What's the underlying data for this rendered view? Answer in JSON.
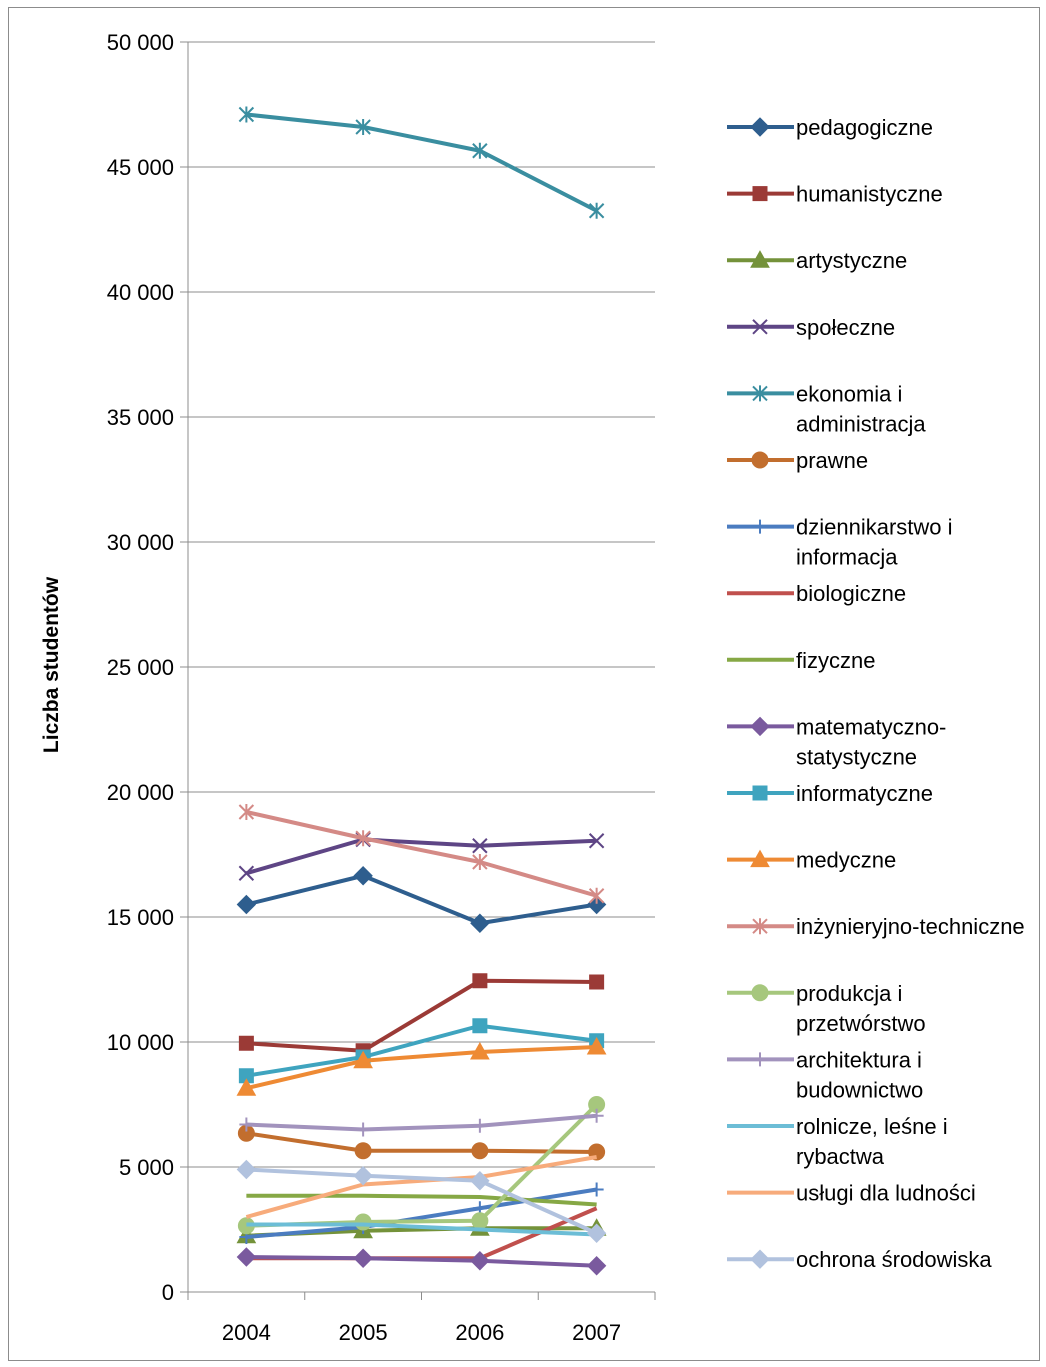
{
  "chart_data": {
    "type": "line",
    "title": "",
    "xlabel": "",
    "ylabel": "Liczba studentów",
    "ylim": [
      0,
      50000
    ],
    "y_ticks": [
      "0",
      "5 000",
      "10 000",
      "15 000",
      "20 000",
      "25 000",
      "30 000",
      "35 000",
      "40 000",
      "45 000",
      "50 000"
    ],
    "x": [
      "2004",
      "2005",
      "2006",
      "2007"
    ],
    "grid": "horizontal",
    "legend_position": "right",
    "series": [
      {
        "name": "pedagogiczne",
        "color": "#2e5e8e",
        "marker": "diamond",
        "values": [
          15500,
          16650,
          14750,
          15500
        ]
      },
      {
        "name": "humanistyczne",
        "color": "#9b3a36",
        "marker": "square",
        "values": [
          9950,
          9650,
          12450,
          12400
        ]
      },
      {
        "name": "artystyczne",
        "color": "#74923a",
        "marker": "triangle",
        "values": [
          2250,
          2450,
          2550,
          2550
        ]
      },
      {
        "name": "społeczne",
        "color": "#5e4585",
        "marker": "x",
        "values": [
          16750,
          18100,
          17850,
          18050
        ]
      },
      {
        "name": "ekonomia i administracja",
        "color": "#3a8ea0",
        "marker": "star",
        "values": [
          47100,
          46600,
          45650,
          43250
        ]
      },
      {
        "name": "prawne",
        "color": "#c26e2e",
        "marker": "circle",
        "values": [
          6350,
          5650,
          5650,
          5600
        ]
      },
      {
        "name": "dziennikarstwo i informacja",
        "color": "#4b7cc0",
        "marker": "plus",
        "values": [
          2200,
          2600,
          3350,
          4100
        ]
      },
      {
        "name": "biologiczne",
        "color": "#c0504d",
        "marker": "none",
        "values": [
          1350,
          1350,
          1350,
          3350
        ]
      },
      {
        "name": "fizyczne",
        "color": "#86a845",
        "marker": "none",
        "values": [
          3850,
          3850,
          3800,
          3500
        ]
      },
      {
        "name": "matematyczno-statystyczne",
        "color": "#7a5a9e",
        "marker": "diamond",
        "values": [
          1400,
          1350,
          1250,
          1050
        ]
      },
      {
        "name": "informatyczne",
        "color": "#3fa4bf",
        "marker": "square",
        "values": [
          8650,
          9400,
          10650,
          10050
        ]
      },
      {
        "name": "medyczne",
        "color": "#ee8a34",
        "marker": "triangle",
        "values": [
          8150,
          9250,
          9600,
          9800
        ]
      },
      {
        "name": "inżynieryjno-techniczne",
        "color": "#d48a86",
        "marker": "star",
        "values": [
          19200,
          18150,
          17200,
          15850
        ]
      },
      {
        "name": "produkcja i przetwórstwo",
        "color": "#a6c77d",
        "marker": "circle",
        "values": [
          2650,
          2800,
          2850,
          7500
        ]
      },
      {
        "name": "architektura i budownictwo",
        "color": "#a293bd",
        "marker": "plus",
        "values": [
          6700,
          6500,
          6650,
          7050
        ]
      },
      {
        "name": "rolnicze, leśne i rybactwa",
        "color": "#6cbdd6",
        "marker": "none",
        "values": [
          2700,
          2700,
          2500,
          2300
        ]
      },
      {
        "name": "usługi dla ludności",
        "color": "#f7ab7b",
        "marker": "none",
        "values": [
          3000,
          4300,
          4600,
          5400
        ]
      },
      {
        "name": "ochrona środowiska",
        "color": "#b1c2de",
        "marker": "diamond",
        "values": [
          4900,
          4650,
          4450,
          2350
        ]
      }
    ],
    "legend_labels": [
      [
        "pedagogiczne"
      ],
      [
        "humanistyczne"
      ],
      [
        "artystyczne"
      ],
      [
        "społeczne"
      ],
      [
        "ekonomia i",
        "administracja"
      ],
      [
        "prawne"
      ],
      [
        "dziennikarstwo i",
        "informacja"
      ],
      [
        "biologiczne"
      ],
      [
        "fizyczne"
      ],
      [
        "matematyczno-",
        "statystyczne"
      ],
      [
        "informatyczne"
      ],
      [
        "medyczne"
      ],
      [
        "inżynieryjno-techniczne"
      ],
      [
        "produkcja i",
        "przetwórstwo"
      ],
      [
        "architektura i",
        "budownictwo"
      ],
      [
        "rolnicze, leśne i",
        "rybactwa"
      ],
      [
        "usługi dla ludności"
      ],
      [
        "ochrona środowiska"
      ]
    ]
  }
}
